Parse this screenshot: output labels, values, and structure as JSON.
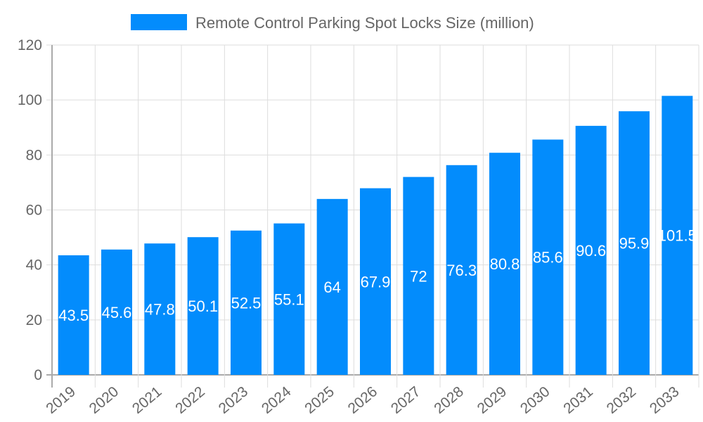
{
  "chart_data": {
    "type": "bar",
    "title": "",
    "xlabel": "",
    "ylabel": "",
    "categories": [
      "2019",
      "2020",
      "2021",
      "2022",
      "2023",
      "2024",
      "2025",
      "2026",
      "2027",
      "2028",
      "2029",
      "2030",
      "2031",
      "2032",
      "2033"
    ],
    "series": [
      {
        "name": "Remote Control Parking Spot Locks Size (million)",
        "values": [
          43.5,
          45.6,
          47.8,
          50.1,
          52.5,
          55.1,
          64,
          67.9,
          72,
          76.3,
          80.8,
          85.6,
          90.6,
          95.9,
          101.5
        ],
        "color": "#038cfc"
      }
    ],
    "ylim": [
      0,
      120
    ],
    "yticks": [
      0,
      20,
      40,
      60,
      80,
      100,
      120
    ],
    "grid": true,
    "legend": "top",
    "data_labels": true
  }
}
